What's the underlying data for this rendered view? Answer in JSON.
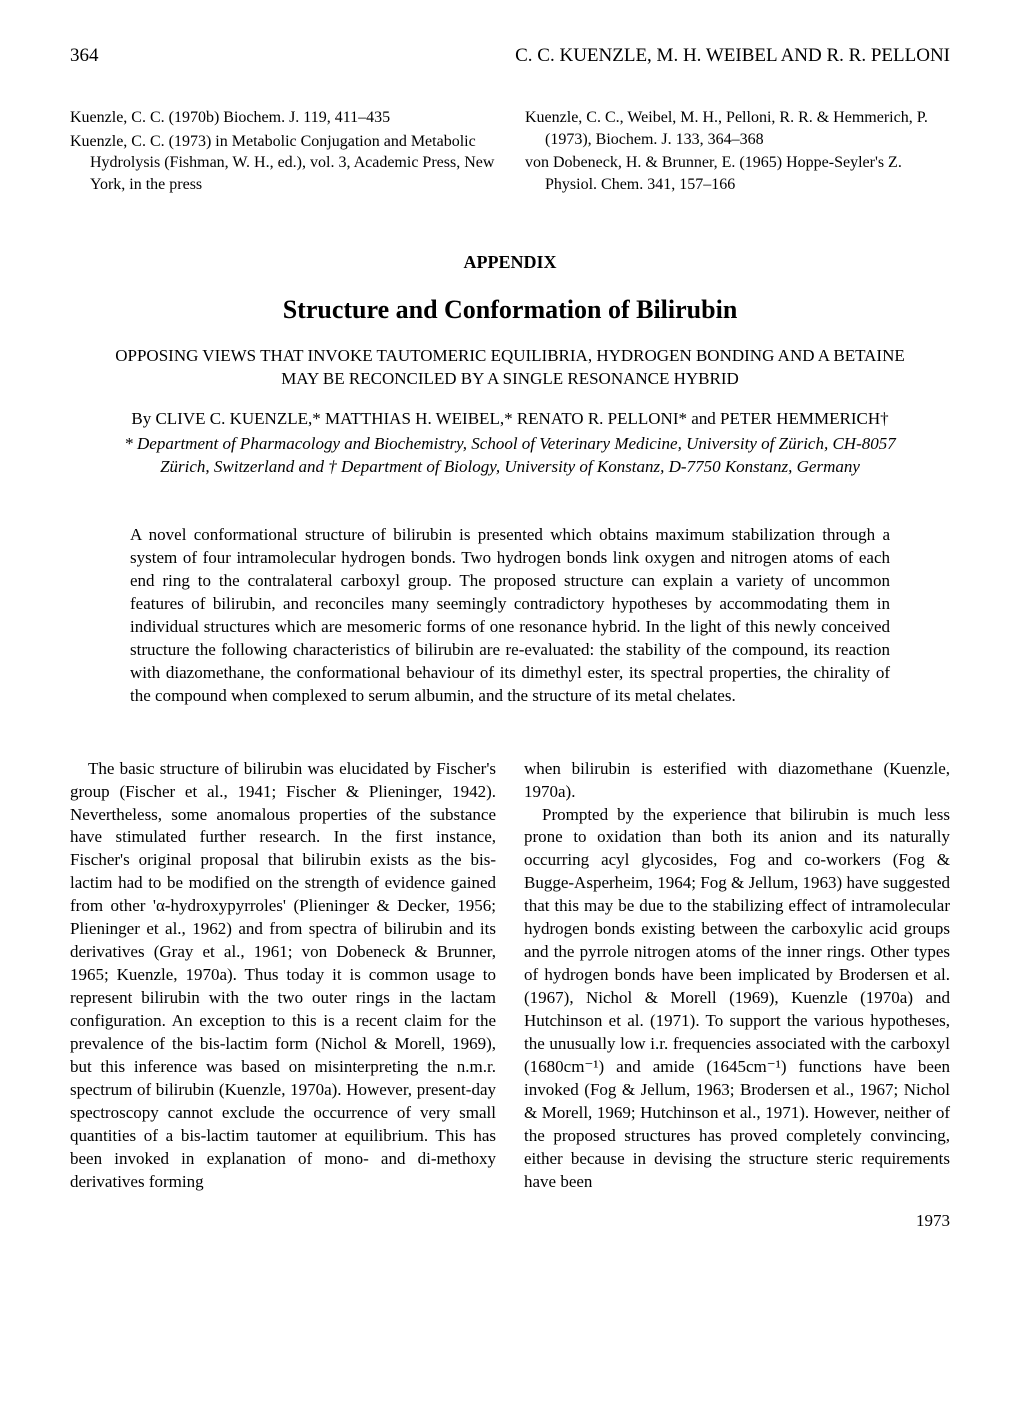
{
  "page_number": "364",
  "header_authors": "C. C. KUENZLE, M. H. WEIBEL AND R. R. PELLONI",
  "references": {
    "left": [
      "Kuenzle, C. C. (1970b) Biochem. J. 119, 411–435",
      "Kuenzle, C. C. (1973) in Metabolic Conjugation and Metabolic Hydrolysis (Fishman, W. H., ed.), vol. 3, Academic Press, New York, in the press"
    ],
    "right": [
      "Kuenzle, C. C., Weibel, M. H., Pelloni, R. R. & Hemmerich, P. (1973), Biochem. J. 133, 364–368",
      "von Dobeneck, H. & Brunner, E. (1965) Hoppe-Seyler's Z. Physiol. Chem. 341, 157–166"
    ]
  },
  "appendix_label": "APPENDIX",
  "main_title": "Structure and Conformation of Bilirubin",
  "subtitle": "OPPOSING VIEWS THAT INVOKE TAUTOMERIC EQUILIBRIA, HYDROGEN BONDING AND A BETAINE MAY BE RECONCILED BY A SINGLE RESONANCE HYBRID",
  "byline": "By CLIVE C. KUENZLE,* MATTHIAS H. WEIBEL,* RENATO R. PELLONI* and PETER HEMMERICH†",
  "affiliation": "* Department of Pharmacology and Biochemistry, School of Veterinary Medicine, University of Zürich, CH-8057 Zürich, Switzerland and † Department of Biology, University of Konstanz, D-7750 Konstanz, Germany",
  "abstract": "A novel conformational structure of bilirubin is presented which obtains maximum stabilization through a system of four intramolecular hydrogen bonds. Two hydrogen bonds link oxygen and nitrogen atoms of each end ring to the contralateral carboxyl group. The proposed structure can explain a variety of uncommon features of bilirubin, and reconciles many seemingly contradictory hypotheses by accommodating them in individual structures which are mesomeric forms of one resonance hybrid. In the light of this newly conceived structure the following characteristics of bilirubin are re-evaluated: the stability of the compound, its reaction with diazomethane, the conformational behaviour of its dimethyl ester, its spectral properties, the chirality of the compound when complexed to serum albumin, and the structure of its metal chelates.",
  "body": {
    "left": "The basic structure of bilirubin was elucidated by Fischer's group (Fischer et al., 1941; Fischer & Plieninger, 1942). Nevertheless, some anomalous properties of the substance have stimulated further research. In the first instance, Fischer's original proposal that bilirubin exists as the bis-lactim had to be modified on the strength of evidence gained from other 'α-hydroxypyrroles' (Plieninger & Decker, 1956; Plieninger et al., 1962) and from spectra of bilirubin and its derivatives (Gray et al., 1961; von Dobeneck & Brunner, 1965; Kuenzle, 1970a). Thus today it is common usage to represent bilirubin with the two outer rings in the lactam configuration. An exception to this is a recent claim for the prevalence of the bis-lactim form (Nichol & Morell, 1969), but this inference was based on misinterpreting the n.m.r. spectrum of bilirubin (Kuenzle, 1970a). However, present-day spectroscopy cannot exclude the occurrence of very small quantities of a bis-lactim tautomer at equilibrium. This has been invoked in explanation of mono- and di-methoxy derivatives forming",
    "right_p1": "when bilirubin is esterified with diazomethane (Kuenzle, 1970a).",
    "right_p2": "Prompted by the experience that bilirubin is much less prone to oxidation than both its anion and its naturally occurring acyl glycosides, Fog and co-workers (Fog & Bugge-Asperheim, 1964; Fog & Jellum, 1963) have suggested that this may be due to the stabilizing effect of intramolecular hydrogen bonds existing between the carboxylic acid groups and the pyrrole nitrogen atoms of the inner rings. Other types of hydrogen bonds have been implicated by Brodersen et al. (1967), Nichol & Morell (1969), Kuenzle (1970a) and Hutchinson et al. (1971). To support the various hypotheses, the unusually low i.r. frequencies associated with the carboxyl (1680cm⁻¹) and amide (1645cm⁻¹) functions have been invoked (Fog & Jellum, 1963; Brodersen et al., 1967; Nichol & Morell, 1969; Hutchinson et al., 1971). However, neither of the proposed structures has proved completely convincing, either because in devising the structure steric requirements have been"
  },
  "footer_year": "1973"
}
